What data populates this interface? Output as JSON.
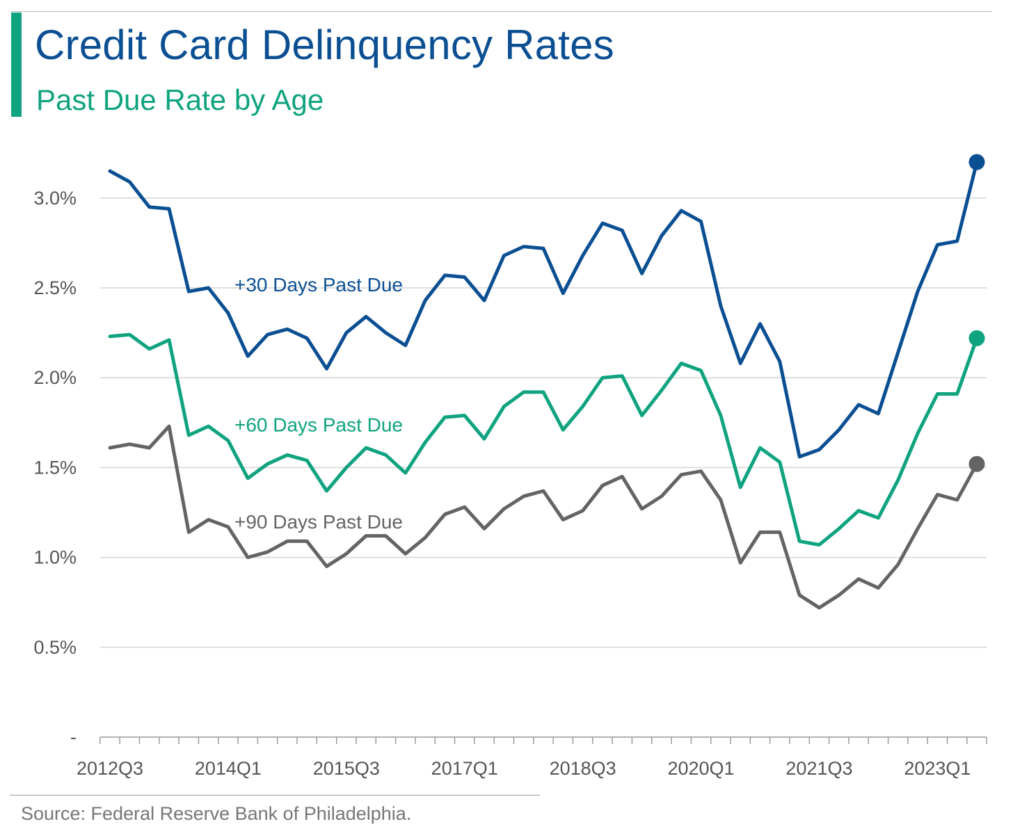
{
  "header": {
    "title": "Credit Card Delinquency Rates",
    "subtitle": "Past Due Rate by Age"
  },
  "colors": {
    "accent": "#0fa37f",
    "series30": "#0b4f93",
    "series60": "#0fa37f",
    "series90": "#646464",
    "grid": "#d4d4d4",
    "axis": "#9a9a9a"
  },
  "footer": {
    "source": "Source: Federal Reserve Bank of Philadelphia."
  },
  "chart_data": {
    "type": "line",
    "title": "Credit Card Delinquency Rates",
    "subtitle": "Past Due Rate by Age",
    "xlabel": "",
    "ylabel": "",
    "ylim": [
      0,
      3.3
    ],
    "yticks": [
      0,
      0.5,
      1.0,
      1.5,
      2.0,
      2.5,
      3.0
    ],
    "ytick_labels": [
      "-",
      "0.5%",
      "1.0%",
      "1.5%",
      "2.0%",
      "2.5%",
      "3.0%"
    ],
    "grid": true,
    "x": [
      "2012Q3",
      "2012Q4",
      "2013Q1",
      "2013Q2",
      "2013Q3",
      "2013Q4",
      "2014Q1",
      "2014Q2",
      "2014Q3",
      "2014Q4",
      "2015Q1",
      "2015Q2",
      "2015Q3",
      "2015Q4",
      "2016Q1",
      "2016Q2",
      "2016Q3",
      "2016Q4",
      "2017Q1",
      "2017Q2",
      "2017Q3",
      "2017Q4",
      "2018Q1",
      "2018Q2",
      "2018Q3",
      "2018Q4",
      "2019Q1",
      "2019Q2",
      "2019Q3",
      "2019Q4",
      "2020Q1",
      "2020Q2",
      "2020Q3",
      "2020Q4",
      "2021Q1",
      "2021Q2",
      "2021Q3",
      "2021Q4",
      "2022Q1",
      "2022Q2",
      "2022Q3",
      "2022Q4",
      "2023Q1",
      "2023Q2",
      "2023Q3"
    ],
    "x_tick_labels": [
      "2012Q3",
      "2014Q1",
      "2015Q3",
      "2017Q1",
      "2018Q3",
      "2020Q1",
      "2021Q3",
      "2023Q1"
    ],
    "series": [
      {
        "name": "+30 Days Past Due",
        "values": [
          3.15,
          3.09,
          2.95,
          2.94,
          2.48,
          2.5,
          2.36,
          2.12,
          2.24,
          2.27,
          2.22,
          2.05,
          2.25,
          2.34,
          2.25,
          2.18,
          2.43,
          2.57,
          2.56,
          2.43,
          2.68,
          2.73,
          2.72,
          2.47,
          2.68,
          2.86,
          2.82,
          2.58,
          2.79,
          2.93,
          2.87,
          2.4,
          2.08,
          2.3,
          2.09,
          1.56,
          1.6,
          1.71,
          1.85,
          1.8,
          2.14,
          2.48,
          2.74,
          2.76,
          3.2
        ]
      },
      {
        "name": "+60 Days Past Due",
        "values": [
          2.23,
          2.24,
          2.16,
          2.21,
          1.68,
          1.73,
          1.65,
          1.44,
          1.52,
          1.57,
          1.54,
          1.37,
          1.5,
          1.61,
          1.57,
          1.47,
          1.64,
          1.78,
          1.79,
          1.66,
          1.84,
          1.92,
          1.92,
          1.71,
          1.84,
          2.0,
          2.01,
          1.79,
          1.93,
          2.08,
          2.04,
          1.79,
          1.39,
          1.61,
          1.53,
          1.09,
          1.07,
          1.16,
          1.26,
          1.22,
          1.43,
          1.69,
          1.91,
          1.91,
          2.22
        ]
      },
      {
        "name": "+90 Days Past Due",
        "values": [
          1.61,
          1.63,
          1.61,
          1.73,
          1.14,
          1.21,
          1.17,
          1.0,
          1.03,
          1.09,
          1.09,
          0.95,
          1.02,
          1.12,
          1.12,
          1.02,
          1.11,
          1.24,
          1.28,
          1.16,
          1.27,
          1.34,
          1.37,
          1.21,
          1.26,
          1.4,
          1.45,
          1.27,
          1.34,
          1.46,
          1.48,
          1.32,
          0.97,
          1.14,
          1.14,
          0.79,
          0.72,
          0.79,
          0.88,
          0.83,
          0.96,
          1.16,
          1.35,
          1.32,
          1.52
        ]
      }
    ],
    "series_labels": [
      "+30 Days Past Due",
      "+60 Days Past Due",
      "+90 Days Past Due"
    ]
  }
}
